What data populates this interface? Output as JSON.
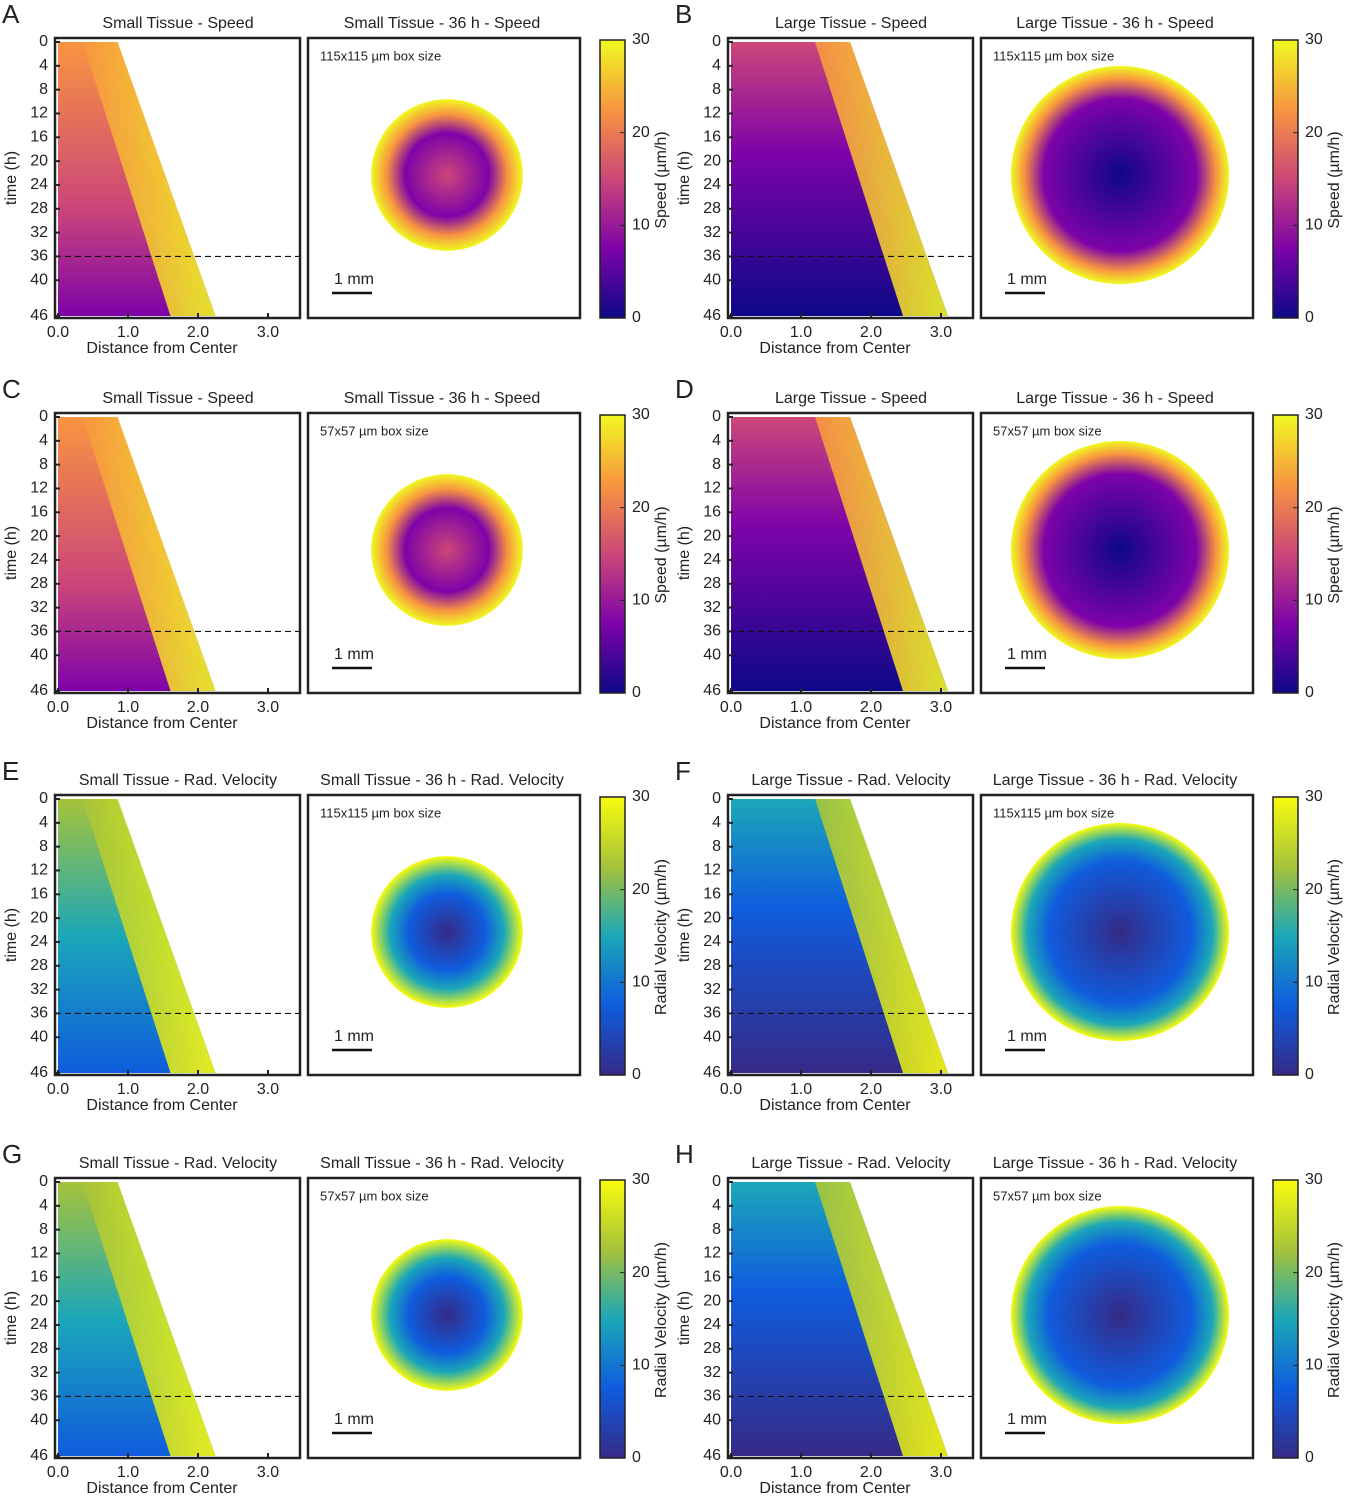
{
  "axes": {
    "time_label": "time (h)",
    "distance_label": "Distance from Center",
    "time_ticks": [
      0,
      4,
      8,
      12,
      16,
      20,
      24,
      28,
      32,
      36,
      40,
      46
    ],
    "distance_ticks": [
      {
        "value": 0,
        "label": "0.0"
      },
      {
        "value": 1,
        "label": "1.0"
      },
      {
        "value": 2,
        "label": "2.0"
      },
      {
        "value": 3,
        "label": "3.0"
      }
    ],
    "distance_lim": [
      0,
      3.5
    ],
    "time_lim": [
      0,
      46
    ],
    "dashed_time": 36,
    "colorbar_ticks": [
      0,
      10,
      20,
      30
    ],
    "colorbar_lim": [
      0,
      30
    ],
    "scale_bar": "1 mm"
  },
  "colormaps": {
    "speed": [
      "#0d0887",
      "#7e03a8",
      "#cc4778",
      "#f89540",
      "#f0f921"
    ],
    "radial": [
      "#352a87",
      "#0f5cdd",
      "#1ba7b8",
      "#a6c33a",
      "#f9fb0e"
    ]
  },
  "tissues": {
    "small": {
      "front": [
        0.85,
        2.25
      ]
    },
    "large": {
      "front": [
        1.7,
        3.1
      ]
    }
  },
  "panels": [
    {
      "letter": "A",
      "kymo_title": "Small Tissue - Speed",
      "map_title": "Small Tissue - 36 h - Speed",
      "box_size": "115x115 µm box size",
      "colorbar_label": "Speed (µm/h)",
      "colormap": "speed",
      "tissue": "small"
    },
    {
      "letter": "B",
      "kymo_title": "Large Tissue - Speed",
      "map_title": "Large Tissue - 36 h - Speed",
      "box_size": "115x115 µm box size",
      "colorbar_label": "Speed (µm/h)",
      "colormap": "speed",
      "tissue": "large"
    },
    {
      "letter": "C",
      "kymo_title": "Small Tissue - Speed",
      "map_title": "Small Tissue - 36 h - Speed",
      "box_size": "57x57 µm box size",
      "colorbar_label": "Speed (µm/h)",
      "colormap": "speed",
      "tissue": "small"
    },
    {
      "letter": "D",
      "kymo_title": "Large Tissue - Speed",
      "map_title": "Large Tissue - 36 h - Speed",
      "box_size": "57x57 µm box size",
      "colorbar_label": "Speed (µm/h)",
      "colormap": "speed",
      "tissue": "large"
    },
    {
      "letter": "E",
      "kymo_title": "Small Tissue - Rad. Velocity",
      "map_title": "Small Tissue - 36 h - Rad. Velocity",
      "box_size": "115x115 µm box size",
      "colorbar_label": "Radial Velocity (µm/h)",
      "colormap": "radial",
      "tissue": "small"
    },
    {
      "letter": "F",
      "kymo_title": "Large Tissue - Rad. Velocity",
      "map_title": "Large Tissue - 36 h - Rad. Velocity",
      "box_size": "115x115 µm box size",
      "colorbar_label": "Radial Velocity (µm/h)",
      "colormap": "radial",
      "tissue": "large"
    },
    {
      "letter": "G",
      "kymo_title": "Small Tissue - Rad. Velocity",
      "map_title": "Small Tissue - 36 h - Rad. Velocity",
      "box_size": "57x57 µm box size",
      "colorbar_label": "Radial Velocity (µm/h)",
      "colormap": "radial",
      "tissue": "small"
    },
    {
      "letter": "H",
      "kymo_title": "Large Tissue - Rad. Velocity",
      "map_title": "Large Tissue - 36 h - Rad. Velocity",
      "box_size": "57x57 µm box size",
      "colorbar_label": "Radial Velocity (µm/h)",
      "colormap": "radial",
      "tissue": "large"
    }
  ]
}
